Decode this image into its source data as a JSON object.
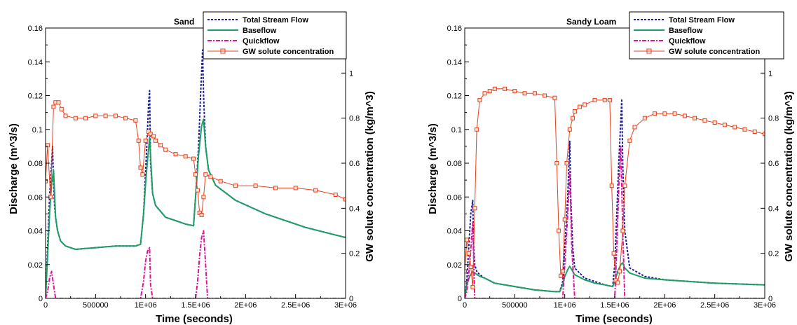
{
  "colors": {
    "total": "#1a1aa0",
    "baseflow": "#1f9e62",
    "quickflow": "#e0139a",
    "gw": "#e8401c"
  },
  "legend_labels": [
    "Total Stream Flow",
    "Baseflow",
    "Quickflow",
    "GW solute concentration"
  ],
  "chart_data": [
    {
      "type": "line",
      "title": "Sand",
      "xlabel": "Time (seconds)",
      "ylabel": "Discharge (m^3/s)",
      "y2label": "GW solute concentration (kg/m^3)",
      "xlim": [
        0,
        3000000
      ],
      "ylim": [
        0,
        0.16
      ],
      "y2lim": [
        0,
        1.2
      ],
      "x_ticks": [
        "0",
        "500000",
        "1E+06",
        "1.5E+06",
        "2E+06",
        "2.5E+06",
        "3E+06"
      ],
      "y_ticks": [
        "0",
        "0.02",
        "0.04",
        "0.06",
        "0.08",
        "0.1",
        "0.12",
        "0.14",
        "0.16"
      ],
      "y2_ticks": [
        "0",
        "0.2",
        "0.4",
        "0.6",
        "0.8",
        "1"
      ],
      "legend": "top-right",
      "series": [
        {
          "name": "Total Stream Flow",
          "axis": "left",
          "x": [
            0,
            20000,
            40000,
            60000,
            70000,
            80000,
            90000,
            100000,
            120000,
            150000,
            200000,
            300000,
            500000,
            700000,
            900000,
            950000,
            980000,
            1000000,
            1020000,
            1030000,
            1040000,
            1050000,
            1070000,
            1100000,
            1200000,
            1300000,
            1400000,
            1480000,
            1500000,
            1530000,
            1550000,
            1570000,
            1580000,
            1600000,
            1630000,
            1700000,
            1900000,
            2200000,
            2600000,
            3000000
          ],
          "y": [
            0,
            0.03,
            0.06,
            0.08,
            0.09,
            0.068,
            0.055,
            0.048,
            0.04,
            0.034,
            0.031,
            0.029,
            0.03,
            0.031,
            0.031,
            0.032,
            0.05,
            0.075,
            0.1,
            0.115,
            0.123,
            0.08,
            0.062,
            0.055,
            0.048,
            0.046,
            0.044,
            0.043,
            0.06,
            0.09,
            0.12,
            0.147,
            0.12,
            0.09,
            0.076,
            0.067,
            0.058,
            0.05,
            0.042,
            0.036
          ]
        },
        {
          "name": "Baseflow",
          "axis": "left",
          "x": [
            0,
            20000,
            40000,
            60000,
            80000,
            100000,
            120000,
            150000,
            200000,
            300000,
            500000,
            700000,
            900000,
            950000,
            980000,
            1000000,
            1020000,
            1040000,
            1070000,
            1100000,
            1200000,
            1300000,
            1400000,
            1480000,
            1500000,
            1530000,
            1560000,
            1580000,
            1600000,
            1630000,
            1700000,
            1900000,
            2200000,
            2600000,
            3000000
          ],
          "y": [
            0,
            0.025,
            0.05,
            0.068,
            0.076,
            0.048,
            0.04,
            0.034,
            0.031,
            0.029,
            0.03,
            0.031,
            0.031,
            0.032,
            0.05,
            0.068,
            0.082,
            0.095,
            0.062,
            0.055,
            0.048,
            0.046,
            0.044,
            0.043,
            0.06,
            0.085,
            0.102,
            0.106,
            0.09,
            0.076,
            0.067,
            0.058,
            0.05,
            0.042,
            0.036
          ]
        },
        {
          "name": "Quickflow",
          "axis": "left",
          "x": [
            0,
            20000,
            40000,
            60000,
            80000,
            100000,
            900000,
            950000,
            980000,
            1000000,
            1020000,
            1040000,
            1050000,
            1070000,
            1500000,
            1520000,
            1540000,
            1560000,
            1580000,
            1600000,
            1620000,
            3000000
          ],
          "y": [
            0,
            0.004,
            0.012,
            0.016,
            0.008,
            0,
            0,
            0,
            0.01,
            0.022,
            0.028,
            0.03,
            0.008,
            0,
            0,
            0.01,
            0.025,
            0.036,
            0.04,
            0.02,
            0,
            0
          ]
        },
        {
          "name": "GW solute concentration",
          "axis": "right",
          "marker": "square",
          "x": [
            0,
            20000,
            50000,
            80000,
            100000,
            130000,
            160000,
            200000,
            300000,
            400000,
            500000,
            600000,
            700000,
            800000,
            900000,
            930000,
            950000,
            970000,
            1000000,
            1030000,
            1050000,
            1080000,
            1100000,
            1150000,
            1200000,
            1300000,
            1400000,
            1480000,
            1500000,
            1520000,
            1540000,
            1560000,
            1580000,
            1600000,
            1650000,
            1750000,
            1900000,
            2100000,
            2300000,
            2500000,
            2700000,
            2900000,
            3000000
          ],
          "y": [
            0.52,
            0.68,
            0.45,
            0.85,
            0.87,
            0.87,
            0.84,
            0.81,
            0.8,
            0.8,
            0.81,
            0.81,
            0.81,
            0.8,
            0.79,
            0.7,
            0.58,
            0.55,
            0.7,
            0.74,
            0.73,
            0.72,
            0.7,
            0.68,
            0.66,
            0.64,
            0.63,
            0.62,
            0.55,
            0.48,
            0.38,
            0.37,
            0.45,
            0.55,
            0.54,
            0.52,
            0.5,
            0.5,
            0.49,
            0.49,
            0.48,
            0.46,
            0.44
          ]
        }
      ]
    },
    {
      "type": "line",
      "title": "Sandy Loam",
      "xlabel": "Time (seconds)",
      "ylabel": "Discharge (m^3/s)",
      "y2label": "GW solute concentration (kg/m^3)",
      "xlim": [
        0,
        3000000
      ],
      "ylim": [
        0,
        0.16
      ],
      "y2lim": [
        0,
        1.2
      ],
      "x_ticks": [
        "0",
        "500000",
        "1E+06",
        "1.5E+06",
        "2E+06",
        "2.5E+06",
        "3E+06"
      ],
      "y_ticks": [
        "0",
        "0.02",
        "0.04",
        "0.06",
        "0.08",
        "0.1",
        "0.12",
        "0.14",
        "0.16"
      ],
      "y2_ticks": [
        "0",
        "0.2",
        "0.4",
        "0.6",
        "0.8",
        "1"
      ],
      "legend": "top-right",
      "series": [
        {
          "name": "Total Stream Flow",
          "axis": "left",
          "x": [
            0,
            20000,
            40000,
            60000,
            80000,
            90000,
            100000,
            120000,
            150000,
            200000,
            300000,
            500000,
            700000,
            900000,
            950000,
            980000,
            1000000,
            1030000,
            1050000,
            1060000,
            1080000,
            1100000,
            1200000,
            1300000,
            1400000,
            1480000,
            1500000,
            1520000,
            1540000,
            1560000,
            1570000,
            1580000,
            1600000,
            1650000,
            1800000,
            2000000,
            2500000,
            3000000
          ],
          "y": [
            0,
            0.01,
            0.03,
            0.05,
            0.058,
            0.03,
            0.02,
            0.016,
            0.014,
            0.012,
            0.009,
            0.007,
            0.005,
            0.004,
            0.004,
            0.01,
            0.03,
            0.06,
            0.093,
            0.06,
            0.03,
            0.018,
            0.012,
            0.01,
            0.008,
            0.007,
            0.02,
            0.05,
            0.08,
            0.105,
            0.118,
            0.08,
            0.04,
            0.018,
            0.013,
            0.011,
            0.009,
            0.008
          ]
        },
        {
          "name": "Baseflow",
          "axis": "left",
          "x": [
            0,
            20000,
            50000,
            80000,
            100000,
            150000,
            200000,
            300000,
            500000,
            700000,
            900000,
            950000,
            980000,
            1000000,
            1030000,
            1050000,
            1080000,
            1100000,
            1200000,
            1300000,
            1400000,
            1480000,
            1500000,
            1530000,
            1560000,
            1580000,
            1600000,
            1650000,
            1800000,
            2000000,
            2500000,
            3000000
          ],
          "y": [
            0,
            0.008,
            0.013,
            0.016,
            0.015,
            0.013,
            0.012,
            0.009,
            0.007,
            0.005,
            0.004,
            0.004,
            0.008,
            0.013,
            0.017,
            0.019,
            0.016,
            0.014,
            0.011,
            0.009,
            0.008,
            0.007,
            0.01,
            0.016,
            0.02,
            0.021,
            0.018,
            0.015,
            0.012,
            0.011,
            0.009,
            0.008
          ]
        },
        {
          "name": "Quickflow",
          "axis": "left",
          "x": [
            0,
            20000,
            50000,
            80000,
            100000,
            900000,
            980000,
            1000000,
            1030000,
            1050000,
            1070000,
            1100000,
            1500000,
            1520000,
            1540000,
            1560000,
            1580000,
            1600000,
            3000000
          ],
          "y": [
            0,
            0.004,
            0.02,
            0.045,
            0,
            0,
            0,
            0.02,
            0.05,
            0.075,
            0.03,
            0,
            0,
            0.03,
            0.065,
            0.09,
            0.04,
            0,
            0
          ]
        },
        {
          "name": "GW solute concentration",
          "axis": "right",
          "marker": "square",
          "x": [
            0,
            20000,
            40000,
            60000,
            80000,
            100000,
            120000,
            150000,
            200000,
            250000,
            300000,
            400000,
            500000,
            600000,
            700000,
            800000,
            900000,
            920000,
            940000,
            960000,
            980000,
            1000000,
            1020000,
            1050000,
            1080000,
            1100000,
            1150000,
            1200000,
            1300000,
            1400000,
            1450000,
            1470000,
            1490000,
            1510000,
            1530000,
            1550000,
            1580000,
            1600000,
            1650000,
            1700000,
            1800000,
            1900000,
            2000000,
            2100000,
            2200000,
            2300000,
            2400000,
            2500000,
            2600000,
            2700000,
            2800000,
            2900000,
            3000000
          ],
          "y": [
            0.12,
            0.26,
            0.2,
            0.14,
            0.05,
            0.4,
            0.75,
            0.88,
            0.91,
            0.92,
            0.93,
            0.93,
            0.92,
            0.91,
            0.91,
            0.9,
            0.89,
            0.6,
            0.3,
            0.1,
            0.12,
            0.35,
            0.6,
            0.75,
            0.8,
            0.83,
            0.85,
            0.86,
            0.88,
            0.88,
            0.88,
            0.5,
            0.2,
            0.08,
            0.07,
            0.12,
            0.3,
            0.5,
            0.7,
            0.76,
            0.8,
            0.82,
            0.82,
            0.82,
            0.81,
            0.8,
            0.79,
            0.78,
            0.77,
            0.76,
            0.75,
            0.74,
            0.73
          ]
        }
      ]
    }
  ]
}
